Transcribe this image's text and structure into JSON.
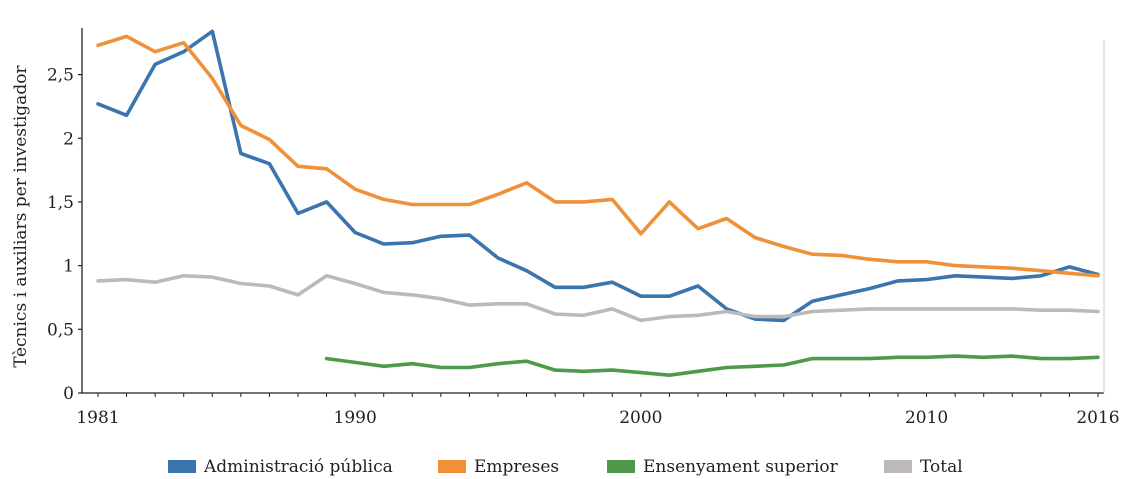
{
  "chart_data": {
    "type": "line",
    "ylabel": "Tècnics i auxiliars per investigador",
    "xlabel": "",
    "xlim": [
      1981,
      2016
    ],
    "ylim": [
      0,
      2.85
    ],
    "grid": false,
    "legend_position": "bottom",
    "x_tick_values": [
      1981,
      1990,
      2000,
      2010,
      2016
    ],
    "x_tick_labels": [
      "1981",
      "1990",
      "2000",
      "2010",
      "2016"
    ],
    "y_tick_values": [
      0,
      0.5,
      1,
      1.5,
      2,
      2.5
    ],
    "y_tick_labels": [
      "0",
      "0,5",
      "1",
      "1,5",
      "2",
      "2,5"
    ],
    "series": [
      {
        "name": "Administració pública",
        "color": "#3a75ad",
        "x": [
          1981,
          1982,
          1983,
          1984,
          1985,
          1986,
          1987,
          1988,
          1989,
          1990,
          1991,
          1992,
          1993,
          1994,
          1995,
          1996,
          1997,
          1998,
          1999,
          2000,
          2001,
          2002,
          2003,
          2004,
          2005,
          2006,
          2007,
          2008,
          2009,
          2010,
          2011,
          2012,
          2013,
          2014,
          2015,
          2016
        ],
        "values": [
          2.27,
          2.18,
          2.58,
          2.68,
          2.84,
          1.88,
          1.8,
          1.41,
          1.5,
          1.26,
          1.17,
          1.18,
          1.23,
          1.24,
          1.06,
          0.96,
          0.83,
          0.83,
          0.87,
          0.76,
          0.76,
          0.84,
          0.66,
          0.58,
          0.57,
          0.72,
          0.77,
          0.82,
          0.88,
          0.89,
          0.92,
          0.91,
          0.9,
          0.92,
          0.99,
          0.93
        ]
      },
      {
        "name": "Empreses",
        "color": "#f0913a",
        "x": [
          1981,
          1982,
          1983,
          1984,
          1985,
          1986,
          1987,
          1988,
          1989,
          1990,
          1991,
          1992,
          1993,
          1994,
          1995,
          1996,
          1997,
          1998,
          1999,
          2000,
          2001,
          2002,
          2003,
          2004,
          2005,
          2006,
          2007,
          2008,
          2009,
          2010,
          2011,
          2012,
          2013,
          2014,
          2015,
          2016
        ],
        "values": [
          2.73,
          2.8,
          2.68,
          2.75,
          2.47,
          2.1,
          1.99,
          1.78,
          1.76,
          1.6,
          1.52,
          1.48,
          1.48,
          1.48,
          1.56,
          1.65,
          1.5,
          1.5,
          1.52,
          1.25,
          1.5,
          1.29,
          1.37,
          1.22,
          1.15,
          1.09,
          1.08,
          1.05,
          1.03,
          1.03,
          1.0,
          0.99,
          0.98,
          0.96,
          0.94,
          0.92
        ]
      },
      {
        "name": "Ensenyament superior",
        "color": "#4f9a4a",
        "x": [
          1989,
          1990,
          1991,
          1992,
          1993,
          1994,
          1995,
          1996,
          1997,
          1998,
          1999,
          2000,
          2001,
          2002,
          2003,
          2004,
          2005,
          2006,
          2007,
          2008,
          2009,
          2010,
          2011,
          2012,
          2013,
          2014,
          2015,
          2016
        ],
        "values": [
          0.27,
          0.24,
          0.21,
          0.23,
          0.2,
          0.2,
          0.23,
          0.25,
          0.18,
          0.17,
          0.18,
          0.16,
          0.14,
          0.17,
          0.2,
          0.21,
          0.22,
          0.27,
          0.27,
          0.27,
          0.28,
          0.28,
          0.29,
          0.28,
          0.29,
          0.27,
          0.27,
          0.28
        ]
      },
      {
        "name": "Total",
        "color": "#bdb9b9",
        "x": [
          1981,
          1982,
          1983,
          1984,
          1985,
          1986,
          1987,
          1988,
          1989,
          1990,
          1991,
          1992,
          1993,
          1994,
          1995,
          1996,
          1997,
          1998,
          1999,
          2000,
          2001,
          2002,
          2003,
          2004,
          2005,
          2006,
          2007,
          2008,
          2009,
          2010,
          2011,
          2012,
          2013,
          2014,
          2015,
          2016
        ],
        "values": [
          0.88,
          0.89,
          0.87,
          0.92,
          0.91,
          0.86,
          0.84,
          0.77,
          0.92,
          0.86,
          0.79,
          0.77,
          0.74,
          0.69,
          0.7,
          0.7,
          0.62,
          0.61,
          0.66,
          0.57,
          0.6,
          0.61,
          0.64,
          0.6,
          0.6,
          0.64,
          0.65,
          0.66,
          0.66,
          0.66,
          0.66,
          0.66,
          0.66,
          0.65,
          0.65,
          0.64
        ]
      }
    ]
  }
}
